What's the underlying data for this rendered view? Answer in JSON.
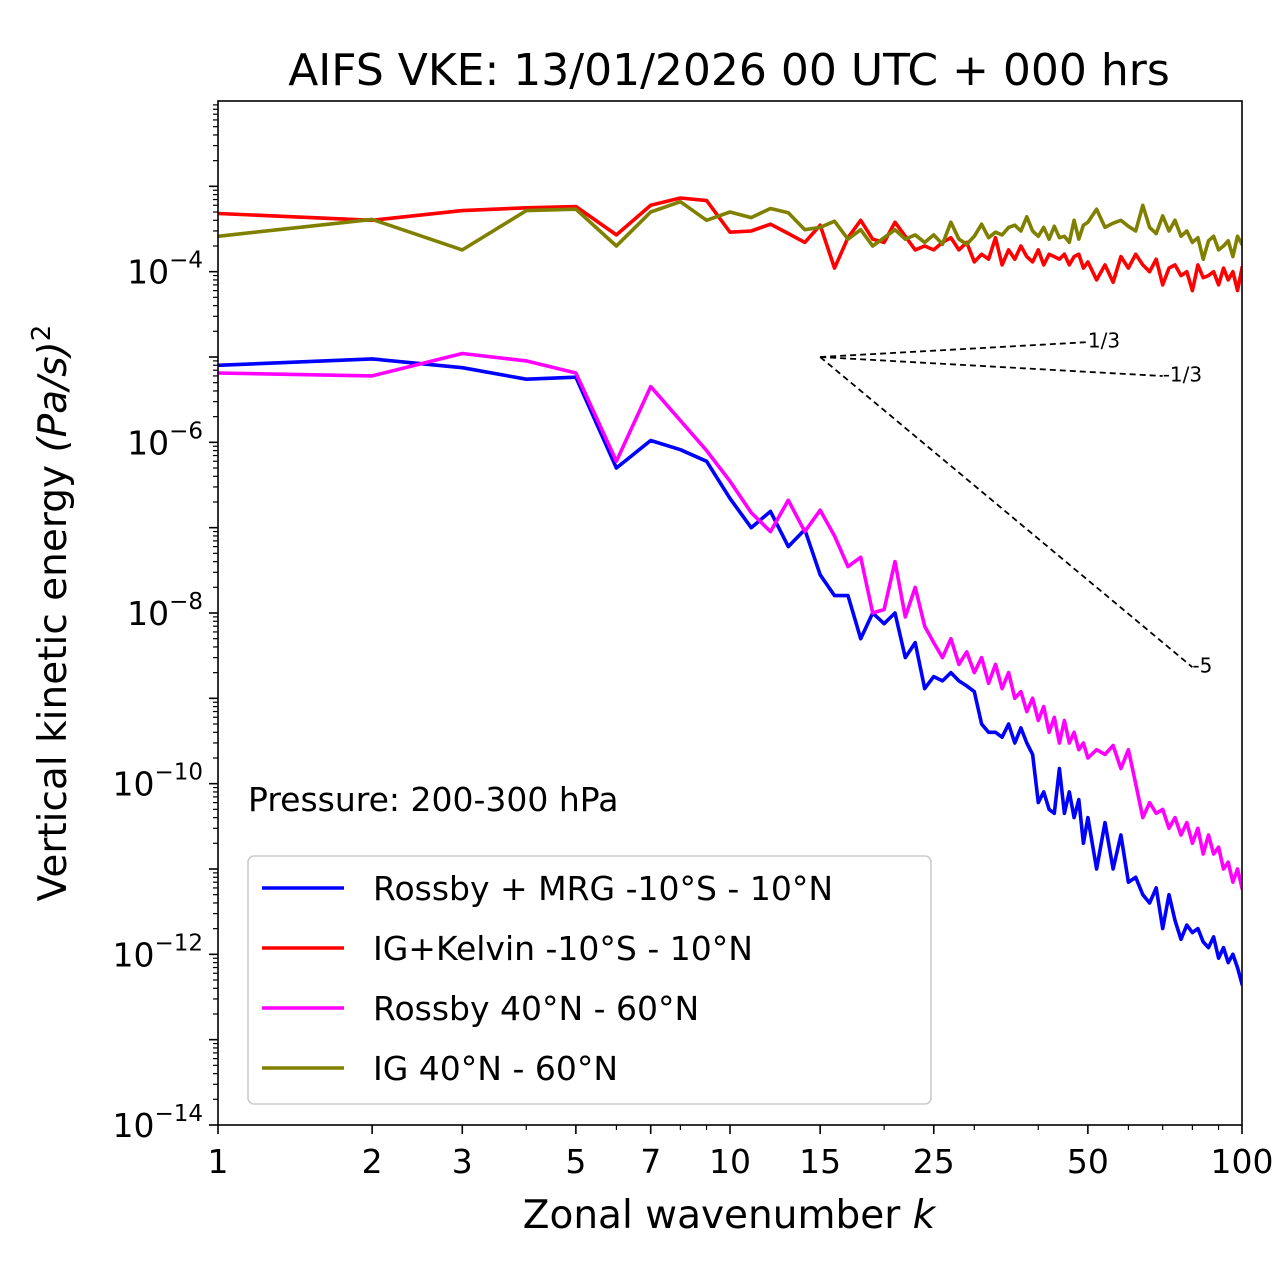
{
  "chart_data": {
    "type": "line",
    "title": "AIFS VKE: 13/01/2026 00 UTC + 000 hrs",
    "xlabel_text": "Zonal wavenumber ",
    "xlabel_var": "k",
    "ylabel_text": "Vertical kinetic energy ",
    "ylabel_unit": "(Pa/s)",
    "ylabel_exp": "2",
    "xscale": "log",
    "yscale": "log",
    "xlim": [
      1,
      100
    ],
    "ylim": [
      1e-14,
      0.01
    ],
    "xticks": [
      {
        "value": 1,
        "label": "1"
      },
      {
        "value": 2,
        "label": "2"
      },
      {
        "value": 3,
        "label": "3"
      },
      {
        "value": 5,
        "label": "5"
      },
      {
        "value": 7,
        "label": "7"
      },
      {
        "value": 10,
        "label": "10"
      },
      {
        "value": 15,
        "label": "15"
      },
      {
        "value": 25,
        "label": "25"
      },
      {
        "value": 50,
        "label": "50"
      },
      {
        "value": 100,
        "label": "100"
      }
    ],
    "yticks": [
      {
        "value": 0.0001,
        "base": "10",
        "exp": "−4"
      },
      {
        "value": 1e-06,
        "base": "10",
        "exp": "−6"
      },
      {
        "value": 1e-08,
        "base": "10",
        "exp": "−8"
      },
      {
        "value": 1e-10,
        "base": "10",
        "exp": "−10"
      },
      {
        "value": 1e-12,
        "base": "10",
        "exp": "−12"
      },
      {
        "value": 1e-14,
        "base": "10",
        "exp": "−14"
      }
    ],
    "annotation": "Pressure: 200-300 hPa",
    "legend_position": "lower-left",
    "reference_slopes": [
      {
        "label": "1/3",
        "slope": 0.3333,
        "k_start": 15,
        "k_end": 50,
        "e_start": 1e-05
      },
      {
        "label": "-1/3",
        "slope": -0.3333,
        "k_start": 15,
        "k_end": 70,
        "e_start": 1e-05
      },
      {
        "label": "-5",
        "slope": -5,
        "k_start": 15,
        "k_end": 80,
        "e_start": 1e-05
      }
    ],
    "series": [
      {
        "name": "Rossby + MRG -10°S - 10°N",
        "color": "#0000ff",
        "x": [
          1,
          2,
          3,
          4,
          5,
          6,
          7,
          8,
          9,
          10,
          11,
          12,
          13,
          14,
          15,
          16,
          17,
          18,
          19,
          20,
          21,
          22,
          23,
          24,
          25,
          26,
          27,
          28,
          29,
          30,
          31,
          32,
          33,
          34,
          35,
          36,
          37,
          38,
          39,
          40,
          41,
          42,
          43,
          44,
          45,
          46,
          47,
          48,
          49,
          50,
          52,
          54,
          56,
          58,
          60,
          62,
          64,
          66,
          68,
          70,
          72,
          74,
          76,
          78,
          80,
          82,
          84,
          86,
          88,
          90,
          92,
          94,
          96,
          98,
          100
        ],
        "values": [
          8e-06,
          9.5e-06,
          7.5e-06,
          5.5e-06,
          5.8e-06,
          5e-07,
          1.05e-06,
          8.2e-07,
          6e-07,
          2.2e-07,
          1e-07,
          1.55e-07,
          6e-08,
          9.5e-08,
          2.8e-08,
          1.6e-08,
          1.6e-08,
          5e-09,
          1e-08,
          7.5e-09,
          1e-08,
          3e-09,
          4.5e-09,
          1.3e-09,
          1.8e-09,
          1.6e-09,
          2e-09,
          1.6e-09,
          1.4e-09,
          1.2e-09,
          5e-10,
          4e-10,
          4e-10,
          3.5e-10,
          5e-10,
          3e-10,
          4.5e-10,
          3e-10,
          2.2e-10,
          6e-11,
          8e-11,
          5e-11,
          4.5e-11,
          1.5e-10,
          4.5e-11,
          8e-11,
          4e-11,
          6.5e-11,
          2e-11,
          4e-11,
          1e-11,
          3.5e-11,
          1e-11,
          2.5e-11,
          7e-12,
          8e-12,
          5e-12,
          4e-12,
          6e-12,
          2e-12,
          5e-12,
          2.5e-12,
          1.5e-12,
          2.2e-12,
          1.8e-12,
          2e-12,
          1.4e-12,
          1.2e-12,
          1.6e-12,
          9e-13,
          1.2e-12,
          8e-13,
          1e-12,
          7e-13,
          4.5e-13
        ]
      },
      {
        "name": "IG+Kelvin -10°S - 10°N",
        "color": "#ff0000",
        "x": [
          1,
          2,
          3,
          4,
          5,
          6,
          7,
          8,
          9,
          10,
          11,
          12,
          13,
          14,
          15,
          16,
          17,
          18,
          19,
          20,
          21,
          22,
          23,
          24,
          25,
          26,
          27,
          28,
          29,
          30,
          31,
          32,
          33,
          34,
          35,
          36,
          37,
          38,
          39,
          40,
          41,
          42,
          43,
          44,
          45,
          46,
          47,
          48,
          49,
          50,
          52,
          54,
          56,
          58,
          60,
          62,
          64,
          66,
          68,
          70,
          72,
          74,
          76,
          78,
          80,
          82,
          84,
          86,
          88,
          90,
          92,
          94,
          96,
          98,
          100
        ],
        "values": [
          0.00048,
          0.0004,
          0.00052,
          0.00056,
          0.00058,
          0.00027,
          0.0006,
          0.00073,
          0.00068,
          0.00029,
          0.0003,
          0.00036,
          0.00028,
          0.00022,
          0.00035,
          0.00011,
          0.00025,
          0.0004,
          0.00024,
          0.00022,
          0.00038,
          0.00026,
          0.00018,
          0.0002,
          0.00018,
          0.00022,
          0.00025,
          0.00018,
          0.00022,
          0.00013,
          0.00016,
          0.00014,
          0.00025,
          0.00012,
          0.00018,
          0.00014,
          0.0002,
          0.00015,
          0.00013,
          0.00018,
          0.00012,
          0.00016,
          0.00015,
          0.00014,
          0.00016,
          0.00012,
          0.00015,
          0.00016,
          0.00011,
          0.00013,
          8e-05,
          0.00012,
          7.5e-05,
          0.00015,
          0.00011,
          0.00016,
          0.00012,
          0.0001,
          0.00014,
          7e-05,
          0.00011,
          0.00012,
          9e-05,
          0.0001,
          6e-05,
          0.00012,
          8.5e-05,
          9e-05,
          0.0001,
          7e-05,
          0.00011,
          8e-05,
          0.0001,
          6e-05,
          0.00011
        ]
      },
      {
        "name": "Rossby 40°N - 60°N",
        "color": "#ff00ff",
        "x": [
          1,
          2,
          3,
          4,
          5,
          6,
          7,
          8,
          9,
          10,
          11,
          12,
          13,
          14,
          15,
          16,
          17,
          18,
          19,
          20,
          21,
          22,
          23,
          24,
          25,
          26,
          27,
          28,
          29,
          30,
          31,
          32,
          33,
          34,
          35,
          36,
          37,
          38,
          39,
          40,
          41,
          42,
          43,
          44,
          45,
          46,
          47,
          48,
          49,
          50,
          52,
          54,
          56,
          58,
          60,
          62,
          64,
          66,
          68,
          70,
          72,
          74,
          76,
          78,
          80,
          82,
          84,
          86,
          88,
          90,
          92,
          94,
          96,
          98,
          100
        ],
        "values": [
          6.5e-06,
          6e-06,
          1.1e-05,
          9e-06,
          6.5e-06,
          6e-07,
          4.5e-06,
          1.8e-06,
          8e-07,
          3.5e-07,
          1.5e-07,
          9e-08,
          2.1e-07,
          9e-08,
          1.6e-07,
          8e-08,
          3.5e-08,
          4.5e-08,
          1e-08,
          1.1e-08,
          4e-08,
          9e-09,
          2e-08,
          7e-09,
          4.5e-09,
          3e-09,
          5e-09,
          2.5e-09,
          3.5e-09,
          2e-09,
          3e-09,
          1.5e-09,
          2.5e-09,
          1.3e-09,
          2e-09,
          1e-09,
          1.2e-09,
          7e-10,
          1e-09,
          5.5e-10,
          8e-10,
          4e-10,
          6e-10,
          3e-10,
          5.5e-10,
          3e-10,
          4e-10,
          2.5e-10,
          3e-10,
          2e-10,
          2.5e-10,
          2.2e-10,
          2.8e-10,
          1.5e-10,
          2.5e-10,
          1e-10,
          4e-11,
          6e-11,
          4.5e-11,
          5e-11,
          3e-11,
          4e-11,
          2.5e-11,
          3.5e-11,
          2e-11,
          3e-11,
          1.5e-11,
          2.5e-11,
          1.5e-11,
          1.8e-11,
          1e-11,
          1.2e-11,
          7e-12,
          1e-11,
          6e-12
        ]
      },
      {
        "name": "IG 40°N - 60°N",
        "color": "#808000",
        "x": [
          1,
          2,
          3,
          4,
          5,
          6,
          7,
          8,
          9,
          10,
          11,
          12,
          13,
          14,
          15,
          16,
          17,
          18,
          19,
          20,
          21,
          22,
          23,
          24,
          25,
          26,
          27,
          28,
          29,
          30,
          31,
          32,
          33,
          34,
          35,
          36,
          37,
          38,
          39,
          40,
          41,
          42,
          43,
          44,
          45,
          46,
          47,
          48,
          49,
          50,
          52,
          54,
          56,
          58,
          60,
          62,
          64,
          66,
          68,
          70,
          72,
          74,
          76,
          78,
          80,
          82,
          84,
          86,
          88,
          90,
          92,
          94,
          96,
          98,
          100
        ],
        "values": [
          0.00026,
          0.00041,
          0.00018,
          0.00052,
          0.00054,
          0.0002,
          0.0005,
          0.00066,
          0.0004,
          0.0005,
          0.00043,
          0.00055,
          0.00049,
          0.00031,
          0.00033,
          0.00039,
          0.00024,
          0.00031,
          0.0002,
          0.00025,
          0.00031,
          0.00024,
          0.00027,
          0.00022,
          0.00027,
          0.00021,
          0.00038,
          0.00024,
          0.00021,
          0.00026,
          0.00036,
          0.00025,
          0.00029,
          0.00027,
          0.00033,
          0.00035,
          0.0003,
          0.00044,
          0.0003,
          0.00026,
          0.00033,
          0.00024,
          0.00034,
          0.00025,
          0.00026,
          0.00022,
          0.0004,
          0.00024,
          0.00035,
          0.00038,
          0.00054,
          0.00033,
          0.00037,
          0.0004,
          0.00034,
          0.0003,
          0.0006,
          0.00033,
          0.00028,
          0.00045,
          0.0003,
          0.0004,
          0.00026,
          0.0003,
          0.00022,
          0.00025,
          0.00014,
          0.00023,
          0.00026,
          0.00018,
          0.0002,
          0.00023,
          0.00015,
          0.00026,
          0.00021
        ]
      }
    ]
  }
}
